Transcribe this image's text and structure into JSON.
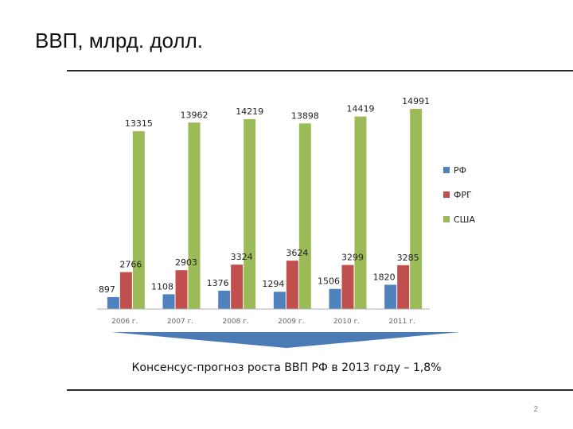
{
  "slide": {
    "title": "ВВП, млрд. долл.",
    "caption": "Консенсус-прогноз роста ВВП РФ в 2013 году – 1,8%",
    "page_number": "2"
  },
  "colors": {
    "rf": "#4f81bd",
    "frg": "#c0504d",
    "usa": "#9bbb59",
    "arrow": "#4a7bb5"
  },
  "chart_data": {
    "type": "bar",
    "categories": [
      "2006 г.",
      "2007 г.",
      "2008 г.",
      "2009 г.",
      "2010 г.",
      "2011 г."
    ],
    "series": [
      {
        "name": "РФ",
        "values": [
          897,
          1108,
          1376,
          1294,
          1506,
          1820
        ]
      },
      {
        "name": "ФРГ",
        "values": [
          2766,
          2903,
          3324,
          3624,
          3299,
          3285
        ]
      },
      {
        "name": "США",
        "values": [
          13315,
          13962,
          14219,
          13898,
          14419,
          14991
        ]
      }
    ],
    "title": "",
    "xlabel": "",
    "ylabel": "",
    "ylim": [
      0,
      16000
    ],
    "legend_position": "right",
    "grid": false
  }
}
